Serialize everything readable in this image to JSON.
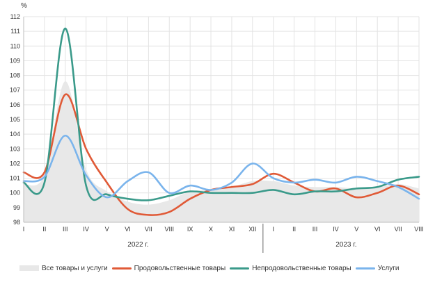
{
  "chart_data": {
    "type": "line",
    "ylabel": "%",
    "ylim": [
      98,
      112
    ],
    "yticks": [
      98,
      99,
      100,
      101,
      102,
      103,
      104,
      105,
      106,
      107,
      108,
      109,
      110,
      111,
      112
    ],
    "categories": [
      "I",
      "II",
      "III",
      "IV",
      "V",
      "VI",
      "VII",
      "VIII",
      "IX",
      "X",
      "XI",
      "XII",
      "I",
      "II",
      "III",
      "IV",
      "V",
      "VI",
      "VII",
      "VIII"
    ],
    "years": [
      {
        "label": "2022 г.",
        "from": 0,
        "to": 11
      },
      {
        "label": "2023 г.",
        "from": 12,
        "to": 19
      }
    ],
    "grid": true,
    "legend_position": "bottom",
    "series": [
      {
        "name": "Все товары и услуги",
        "kind": "area",
        "color": "#e8e8e8",
        "values": [
          100.6,
          101.2,
          107.6,
          101.6,
          100.1,
          99.4,
          99.2,
          99.5,
          100.1,
          100.2,
          100.4,
          100.8,
          100.8,
          100.5,
          100.4,
          100.4,
          100.3,
          100.4,
          100.6,
          100.3
        ]
      },
      {
        "name": "Продовольственные товары",
        "kind": "line",
        "color": "#e05a37",
        "values": [
          101.4,
          101.4,
          106.7,
          103.0,
          100.7,
          98.9,
          98.5,
          98.7,
          99.6,
          100.2,
          100.4,
          100.6,
          101.3,
          100.7,
          100.1,
          100.3,
          99.7,
          100.0,
          100.5,
          99.9
        ]
      },
      {
        "name": "Непродовольственные товары",
        "kind": "line",
        "color": "#3a9a8a",
        "values": [
          100.7,
          100.7,
          111.2,
          100.5,
          99.9,
          99.6,
          99.5,
          99.8,
          100.1,
          100.0,
          100.0,
          100.0,
          100.2,
          99.9,
          100.1,
          100.1,
          100.3,
          100.4,
          100.9,
          101.1
        ]
      },
      {
        "name": "Услуги",
        "kind": "line",
        "color": "#7ab4ec",
        "values": [
          100.8,
          101.1,
          103.9,
          101.2,
          99.7,
          100.8,
          101.4,
          100.0,
          100.5,
          100.2,
          100.7,
          102.0,
          101.0,
          100.7,
          100.9,
          100.7,
          101.1,
          100.8,
          100.4,
          99.6
        ]
      }
    ]
  }
}
